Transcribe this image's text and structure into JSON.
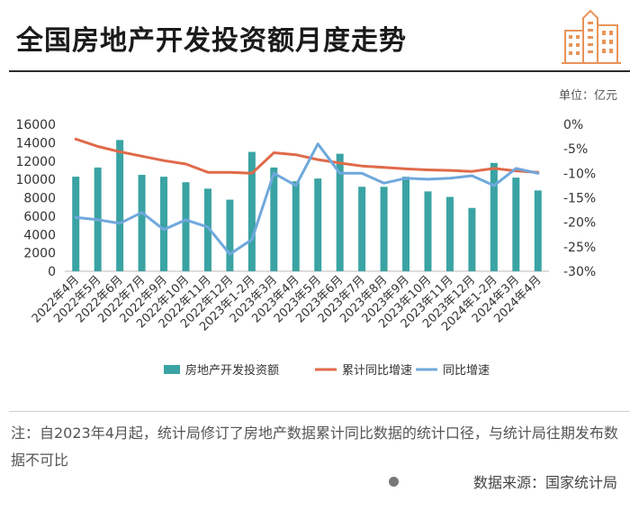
{
  "title": "全国房地产开发投资额月度走势",
  "unit": "单位：亿元",
  "note": "注：自2023年4月起，统计局修订了房地产数据累计同比数据的统计口径，与统计局往期发布数据不可比",
  "source": "数据来源：国家统计局",
  "colors": {
    "bar": "#3aa3a3",
    "cumulative": "#e06a4a",
    "yoy": "#6fa8dc",
    "logo": "#e8945a"
  },
  "chart_data": {
    "type": "bar",
    "categories": [
      "2022年4月",
      "2022年5月",
      "2022年6月",
      "2022年7月",
      "2022年9月",
      "2022年10月",
      "2022年11月",
      "2022年12月",
      "2023年1-2月",
      "2023年3月",
      "2023年4月",
      "2023年5月",
      "2023年6月",
      "2023年7月",
      "2023年8月",
      "2023年9月",
      "2023年10月",
      "2023年11月",
      "2023年12月",
      "2024年1-2月",
      "2024年3月",
      "2024年4月"
    ],
    "left_axis": {
      "ticks": [
        "0",
        "2000",
        "4000",
        "6000",
        "8000",
        "10000",
        "12000",
        "14000",
        "16000"
      ],
      "min": 0,
      "max": 16000
    },
    "right_axis": {
      "ticks": [
        "0%",
        "-5%",
        "-10%",
        "-15%",
        "-20%",
        "-25%",
        "-30%"
      ],
      "min": -30,
      "max": 0
    },
    "series": [
      {
        "name": "房地产开发投资额",
        "type": "bar",
        "axis": "left",
        "values": [
          10300,
          11300,
          14300,
          10500,
          10300,
          9700,
          9000,
          7800,
          13000,
          11300,
          9800,
          10100,
          12800,
          9200,
          9200,
          10300,
          8700,
          8100,
          6900,
          11800,
          10200,
          8800
        ]
      },
      {
        "name": "累计同比增速",
        "type": "line",
        "axis": "right",
        "values": [
          -3.0,
          -4.5,
          -5.6,
          -6.5,
          -7.4,
          -8.1,
          -9.8,
          -9.8,
          -10.0,
          -5.8,
          -6.2,
          -7.2,
          -7.9,
          -8.5,
          -8.8,
          -9.1,
          -9.3,
          -9.4,
          -9.6,
          -9.0,
          -9.5,
          -9.8
        ]
      },
      {
        "name": "同比增速",
        "type": "line",
        "axis": "right",
        "values": [
          -19.0,
          -19.5,
          -20.2,
          -18.0,
          -21.5,
          -19.5,
          -21.0,
          -26.5,
          -23.5,
          -10.0,
          -12.5,
          -4.0,
          -10.0,
          -10.0,
          -12.0,
          -11.0,
          -11.2,
          -11.0,
          -10.5,
          -12.5,
          -9.0,
          -10.0
        ]
      }
    ],
    "legend_position": "bottom",
    "grid": false
  }
}
